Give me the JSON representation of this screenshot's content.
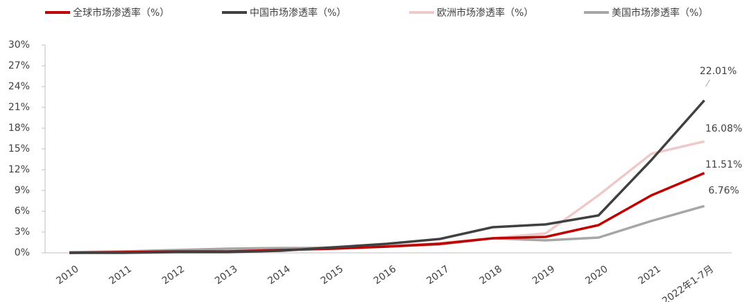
{
  "chart_data": {
    "type": "line",
    "categories": [
      "2010",
      "2011",
      "2012",
      "2013",
      "2014",
      "2015",
      "2016",
      "2017",
      "2018",
      "2019",
      "2020",
      "2021",
      "2022年1-7月"
    ],
    "series": [
      {
        "name": "全球市场渗透率（%）",
        "color": "#c00000",
        "values": [
          0,
          0.1,
          0.2,
          0.2,
          0.4,
          0.6,
          0.9,
          1.3,
          2.1,
          2.3,
          4.0,
          8.3,
          11.51
        ],
        "value_labels": [
          null,
          null,
          null,
          null,
          null,
          null,
          null,
          null,
          null,
          null,
          null,
          null,
          "11.51%"
        ]
      },
      {
        "name": "中国市场渗透率（%）",
        "color": "#404040",
        "values": [
          0,
          0,
          0.1,
          0.1,
          0.3,
          0.8,
          1.3,
          2.0,
          3.7,
          4.1,
          5.4,
          13.4,
          22.01
        ],
        "value_labels": [
          null,
          null,
          null,
          null,
          null,
          null,
          null,
          null,
          null,
          null,
          null,
          null,
          "22.01%"
        ]
      },
      {
        "name": "欧洲市场渗透率（%）",
        "color": "#efc9c9",
        "values": [
          0,
          0.1,
          0.2,
          0.4,
          0.6,
          0.8,
          1.0,
          1.4,
          2.1,
          2.8,
          8.3,
          14.3,
          16.08
        ],
        "value_labels": [
          null,
          null,
          null,
          null,
          null,
          null,
          null,
          null,
          null,
          null,
          null,
          null,
          "16.08%"
        ]
      },
      {
        "name": "美国市场渗透率（%）",
        "color": "#a6a6a6",
        "values": [
          0.1,
          0.2,
          0.4,
          0.6,
          0.7,
          0.7,
          0.9,
          1.2,
          2.1,
          1.8,
          2.2,
          4.6,
          6.76
        ],
        "value_labels": [
          null,
          null,
          null,
          null,
          null,
          null,
          null,
          null,
          null,
          null,
          null,
          null,
          "6.76%"
        ]
      }
    ],
    "ylim": [
      0,
      30
    ],
    "yticks": [
      {
        "value": 0,
        "label": "0%"
      },
      {
        "value": 3,
        "label": "3%"
      },
      {
        "value": 6,
        "label": "6%"
      },
      {
        "value": 9,
        "label": "9%"
      },
      {
        "value": 12,
        "label": "12%"
      },
      {
        "value": 15,
        "label": "15%"
      },
      {
        "value": 18,
        "label": "18%"
      },
      {
        "value": 21,
        "label": "21%"
      },
      {
        "value": 24,
        "label": "24%"
      },
      {
        "value": 27,
        "label": "27%"
      },
      {
        "value": 30,
        "label": "30%"
      }
    ],
    "legend": "top"
  }
}
